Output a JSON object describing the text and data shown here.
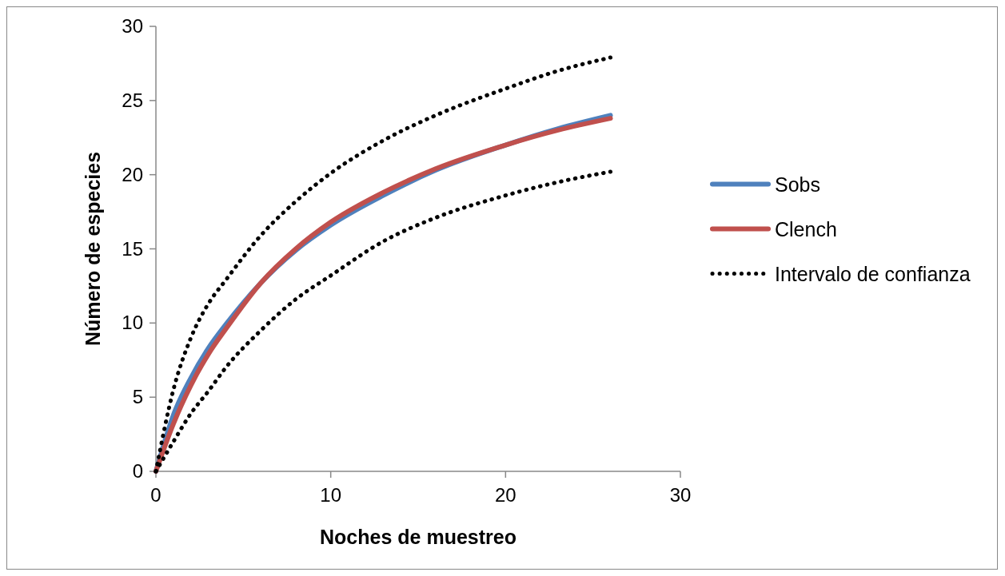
{
  "chart_data": {
    "type": "line",
    "xlabel": "Noches de muestreo",
    "ylabel": "Número de especies",
    "x": [
      0,
      1,
      2,
      3,
      4,
      6,
      8,
      10,
      13,
      16,
      20,
      23,
      26
    ],
    "series": [
      {
        "name": "Sobs",
        "color": "#4f81bd",
        "values": [
          0,
          3.8,
          6.3,
          8.3,
          9.9,
          12.7,
          14.9,
          16.6,
          18.6,
          20.3,
          22.0,
          23.1,
          24.0
        ]
      },
      {
        "name": "Clench",
        "color": "#c0504d",
        "values": [
          0,
          3.2,
          5.8,
          7.9,
          9.6,
          12.7,
          15.0,
          16.8,
          18.8,
          20.4,
          22.0,
          23.0,
          23.8
        ]
      },
      {
        "name": "Intervalo de confianza",
        "color": "#000000",
        "line_style": "dotted",
        "values": [
          0,
          5.5,
          9.0,
          11.3,
          12.9,
          15.9,
          18.2,
          20.1,
          22.3,
          24.0,
          25.8,
          27.0,
          27.9
        ]
      },
      {
        "color": "#000000",
        "line_style": "dotted",
        "values": [
          0,
          2.0,
          3.9,
          5.4,
          7.0,
          9.5,
          11.6,
          13.2,
          15.5,
          17.1,
          18.6,
          19.5,
          20.2
        ]
      }
    ],
    "xlim": [
      0,
      30
    ],
    "xticks": [
      0,
      10,
      20,
      30
    ],
    "ylim": [
      0,
      30
    ],
    "yticks": [
      0,
      5,
      10,
      15,
      20,
      25,
      30
    ],
    "legend": "right",
    "grid": false,
    "line_style": "solid"
  }
}
